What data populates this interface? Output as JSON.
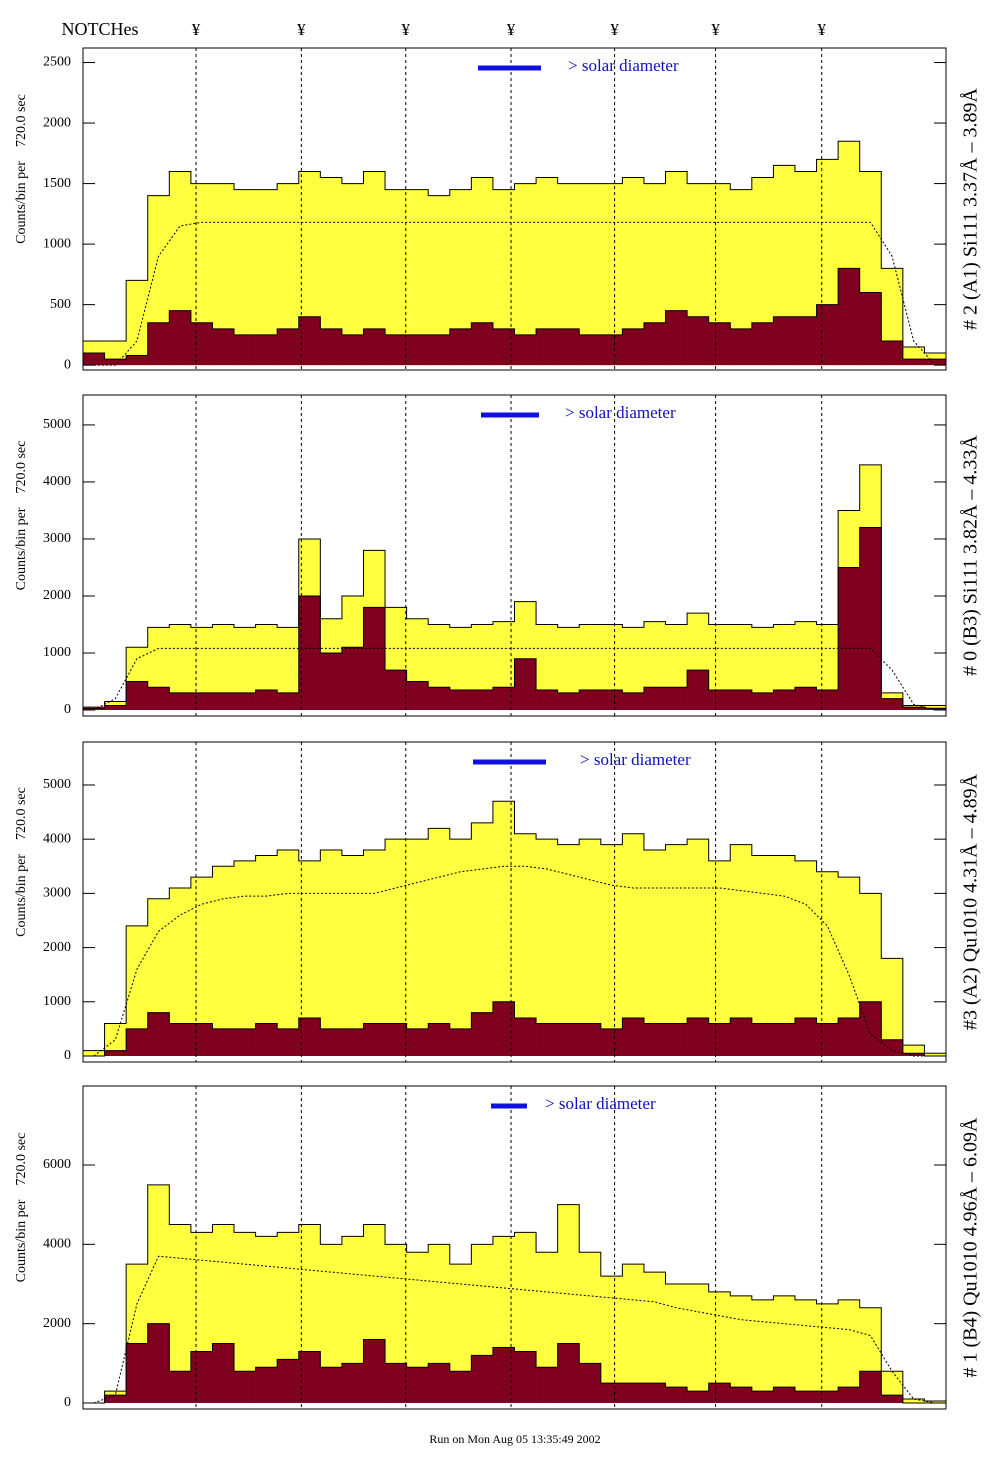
{
  "notches": {
    "title": "NOTCHes",
    "symbols": [
      "¥",
      "¥",
      "¥",
      "¥",
      "¥",
      "¥",
      "¥"
    ],
    "positions": [
      13.1,
      25.3,
      37.4,
      49.6,
      61.6,
      73.3,
      85.6
    ]
  },
  "footer": "Run on Mon Aug 05 13:35:49 2002",
  "chart_data": [
    {
      "type": "histogram",
      "title": "# 2 (A1) Si111  3.37Å – 3.89Å",
      "y_label": "Counts/bin per    720.0 sec",
      "annotation": "> solar diameter",
      "bins": [
        0,
        2.5,
        5,
        7.5,
        10,
        12.5,
        15,
        17.5,
        20,
        22.5,
        25,
        27.5,
        30,
        32.5,
        35,
        37.5,
        40,
        42.5,
        45,
        47.5,
        50,
        52.5,
        55,
        57.5,
        60,
        62.5,
        65,
        67.5,
        70,
        72.5,
        75,
        77.5,
        80,
        82.5,
        85,
        87.5,
        90,
        92.5,
        95,
        97.5,
        100
      ],
      "xlim": [
        0,
        100
      ],
      "ylim": [
        -40,
        2620
      ],
      "yticks": [
        0,
        500,
        1000,
        1500,
        2000,
        2500
      ],
      "series": [
        {
          "color": "#ffff40",
          "values": [
            200,
            200,
            700,
            1400,
            1600,
            1500,
            1500,
            1450,
            1450,
            1500,
            1600,
            1550,
            1500,
            1600,
            1450,
            1450,
            1400,
            1450,
            1550,
            1450,
            1500,
            1550,
            1500,
            1500,
            1500,
            1550,
            1500,
            1600,
            1500,
            1500,
            1450,
            1550,
            1650,
            1600,
            1700,
            1850,
            1600,
            800,
            150,
            100
          ]
        },
        {
          "color": "#800020",
          "values": [
            100,
            50,
            80,
            350,
            450,
            350,
            300,
            250,
            250,
            300,
            400,
            300,
            250,
            300,
            250,
            250,
            250,
            300,
            350,
            300,
            250,
            300,
            300,
            250,
            250,
            300,
            350,
            450,
            400,
            350,
            300,
            350,
            400,
            400,
            500,
            800,
            600,
            200,
            50,
            50
          ]
        }
      ],
      "fit": [
        0,
        0,
        200,
        900,
        1150,
        1180,
        1180,
        1180,
        1180,
        1180,
        1180,
        1180,
        1180,
        1180,
        1180,
        1180,
        1180,
        1180,
        1180,
        1180,
        1180,
        1180,
        1180,
        1180,
        1180,
        1180,
        1180,
        1180,
        1180,
        1180,
        1180,
        1180,
        1180,
        1180,
        1180,
        1180,
        1180,
        900,
        200,
        0
      ]
    },
    {
      "type": "histogram",
      "title": "# 0 (B3) Si111  3.82Å – 4.33Å",
      "y_label": "Counts/bin per    720.0 sec",
      "annotation": "> solar diameter",
      "bins": [
        0,
        2.5,
        5,
        7.5,
        10,
        12.5,
        15,
        17.5,
        20,
        22.5,
        25,
        27.5,
        30,
        32.5,
        35,
        37.5,
        40,
        42.5,
        45,
        47.5,
        50,
        52.5,
        55,
        57.5,
        60,
        62.5,
        65,
        67.5,
        70,
        72.5,
        75,
        77.5,
        80,
        82.5,
        85,
        87.5,
        90,
        92.5,
        95,
        97.5,
        100
      ],
      "xlim": [
        0,
        100
      ],
      "ylim": [
        -105,
        5525
      ],
      "yticks": [
        0,
        1000,
        2000,
        3000,
        4000,
        5000
      ],
      "series": [
        {
          "color": "#ffff40",
          "values": [
            50,
            150,
            1100,
            1450,
            1500,
            1450,
            1500,
            1450,
            1500,
            1450,
            3000,
            1600,
            2000,
            2800,
            1800,
            1600,
            1500,
            1450,
            1500,
            1550,
            1900,
            1500,
            1450,
            1500,
            1500,
            1450,
            1550,
            1500,
            1700,
            1500,
            1500,
            1450,
            1500,
            1550,
            1500,
            3500,
            4300,
            300,
            80,
            80
          ]
        },
        {
          "color": "#800020",
          "values": [
            30,
            80,
            500,
            400,
            300,
            300,
            300,
            300,
            350,
            300,
            2000,
            1000,
            1100,
            1800,
            700,
            500,
            400,
            350,
            350,
            400,
            900,
            350,
            300,
            350,
            350,
            300,
            400,
            400,
            700,
            350,
            350,
            300,
            350,
            400,
            350,
            2500,
            3200,
            200,
            50,
            30
          ]
        }
      ],
      "fit": [
        0,
        200,
        900,
        1080,
        1080,
        1080,
        1080,
        1080,
        1080,
        1080,
        1080,
        1080,
        1080,
        1080,
        1080,
        1080,
        1080,
        1080,
        1080,
        1080,
        1080,
        1080,
        1080,
        1080,
        1080,
        1080,
        1080,
        1080,
        1080,
        1080,
        1080,
        1080,
        1080,
        1080,
        1080,
        1080,
        1080,
        700,
        100,
        0
      ]
    },
    {
      "type": "histogram",
      "title": "#3 (A2) Qu1010  4.31Å – 4.89Å",
      "y_label": "Counts/bin per    720.0 sec",
      "annotation": "> solar diameter",
      "bins": [
        0,
        2.5,
        5,
        7.5,
        10,
        12.5,
        15,
        17.5,
        20,
        22.5,
        25,
        27.5,
        30,
        32.5,
        35,
        37.5,
        40,
        42.5,
        45,
        47.5,
        50,
        52.5,
        55,
        57.5,
        60,
        62.5,
        65,
        67.5,
        70,
        72.5,
        75,
        77.5,
        80,
        82.5,
        85,
        87.5,
        90,
        92.5,
        95,
        97.5,
        100
      ],
      "xlim": [
        0,
        100
      ],
      "ylim": [
        -111,
        5793
      ],
      "yticks": [
        0,
        1000,
        2000,
        3000,
        4000,
        5000
      ],
      "series": [
        {
          "color": "#ffff40",
          "values": [
            100,
            600,
            2400,
            2900,
            3100,
            3300,
            3500,
            3600,
            3700,
            3800,
            3600,
            3800,
            3700,
            3800,
            4000,
            4000,
            4200,
            4000,
            4300,
            4700,
            4100,
            4000,
            3900,
            4000,
            3900,
            4100,
            3800,
            3900,
            4000,
            3600,
            3900,
            3700,
            3700,
            3600,
            3400,
            3300,
            3000,
            1800,
            200,
            50
          ]
        },
        {
          "color": "#800020",
          "values": [
            0,
            100,
            500,
            800,
            600,
            600,
            500,
            500,
            600,
            500,
            700,
            500,
            500,
            600,
            600,
            500,
            600,
            500,
            800,
            1000,
            700,
            600,
            600,
            600,
            500,
            700,
            600,
            600,
            700,
            600,
            700,
            600,
            600,
            700,
            600,
            700,
            1000,
            300,
            50,
            0
          ]
        }
      ],
      "fit": [
        0,
        300,
        1600,
        2300,
        2600,
        2800,
        2900,
        2950,
        2950,
        3000,
        3000,
        3000,
        3000,
        3000,
        3100,
        3200,
        3300,
        3400,
        3450,
        3500,
        3500,
        3450,
        3350,
        3250,
        3150,
        3100,
        3100,
        3100,
        3100,
        3100,
        3050,
        3000,
        2950,
        2800,
        2400,
        1500,
        400,
        100,
        0,
        0
      ]
    },
    {
      "type": "histogram",
      "title": "# 1 (B4) Qu1010 4.96Å – 6.09Å",
      "y_label": "Counts/bin per    720.0 sec",
      "annotation": "> solar diameter",
      "bins": [
        0,
        2.5,
        5,
        7.5,
        10,
        12.5,
        15,
        17.5,
        20,
        22.5,
        25,
        27.5,
        30,
        32.5,
        35,
        37.5,
        40,
        42.5,
        45,
        47.5,
        50,
        52.5,
        55,
        57.5,
        60,
        62.5,
        65,
        67.5,
        70,
        72.5,
        75,
        77.5,
        80,
        82.5,
        85,
        87.5,
        90,
        92.5,
        95,
        97.5,
        100
      ],
      "xlim": [
        0,
        100
      ],
      "ylim": [
        -151,
        7991
      ],
      "yticks": [
        0,
        2000,
        4000,
        6000
      ],
      "series": [
        {
          "color": "#ffff40",
          "values": [
            0,
            300,
            3500,
            5500,
            4500,
            4300,
            4500,
            4300,
            4200,
            4300,
            4500,
            4000,
            4200,
            4500,
            4000,
            3800,
            4000,
            3500,
            4000,
            4200,
            4300,
            3800,
            5000,
            3800,
            3200,
            3500,
            3300,
            3000,
            3000,
            2800,
            2700,
            2600,
            2700,
            2600,
            2500,
            2600,
            2400,
            800,
            100,
            50
          ]
        },
        {
          "color": "#800020",
          "values": [
            0,
            200,
            1500,
            2000,
            800,
            1300,
            1500,
            800,
            900,
            1100,
            1300,
            900,
            1000,
            1600,
            1000,
            900,
            1000,
            800,
            1200,
            1400,
            1300,
            900,
            1500,
            1000,
            500,
            500,
            500,
            400,
            300,
            500,
            400,
            300,
            400,
            300,
            300,
            400,
            800,
            200,
            0,
            0
          ]
        }
      ],
      "fit": [
        0,
        200,
        2500,
        3700,
        3650,
        3600,
        3550,
        3500,
        3450,
        3400,
        3350,
        3300,
        3250,
        3200,
        3150,
        3100,
        3050,
        3000,
        2950,
        2900,
        2850,
        2800,
        2750,
        2700,
        2650,
        2600,
        2550,
        2400,
        2300,
        2200,
        2100,
        2050,
        2000,
        1950,
        1900,
        1850,
        1700,
        800,
        100,
        0
      ]
    }
  ]
}
